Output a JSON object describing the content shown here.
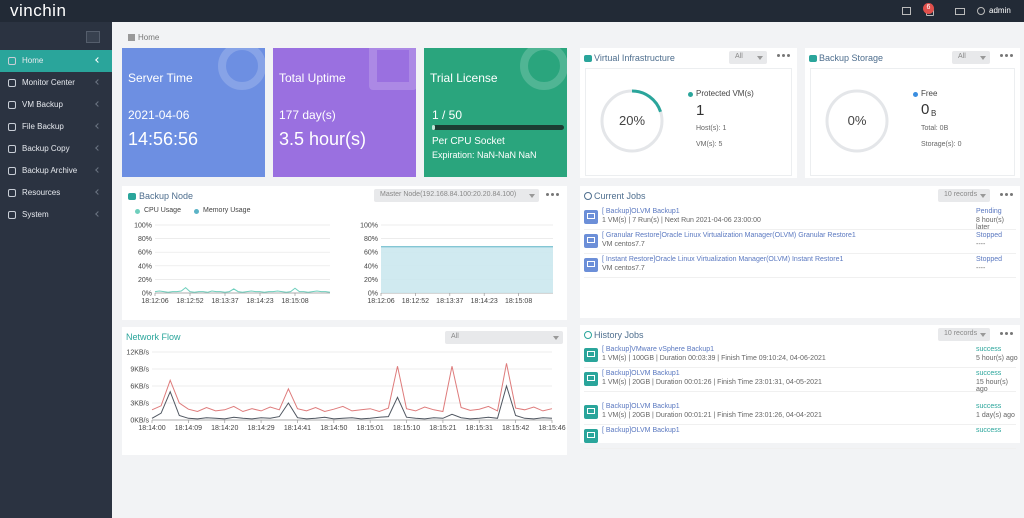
{
  "header": {
    "logo": "vinchin",
    "notifications": "6",
    "user": "admin"
  },
  "sidebar": {
    "items": [
      "Home",
      "Monitor Center",
      "VM Backup",
      "File Backup",
      "Backup Copy",
      "Backup Archive",
      "Resources",
      "System"
    ]
  },
  "breadcrumb": "Home",
  "cards": [
    {
      "title": "Server Time",
      "line1": "2021-04-06",
      "line2": "14:56:56"
    },
    {
      "title": "Total Uptime",
      "line1": "177 day(s)",
      "line2": "3.5 hour(s)"
    },
    {
      "title": "Trial License",
      "line1": "1 / 50",
      "line2": "Per CPU Socket",
      "line3": "Expiration: NaN-NaN NaN"
    }
  ],
  "virtual_infrastructure": {
    "title": "Virtual Infrastructure",
    "filter": "All",
    "gauge": {
      "value": 20,
      "label": "20%"
    },
    "legend": "Protected VM(s)",
    "count": "1",
    "hosts": "Host(s): 1",
    "vms": "VM(s): 5"
  },
  "backup_storage": {
    "title": "Backup Storage",
    "filter": "All",
    "gauge": {
      "value": 0,
      "label": "0%"
    },
    "legend": "Free",
    "amount": "0",
    "unit": "B",
    "total": "Total: 0B",
    "storages": "Storage(s): 0"
  },
  "backup_node": {
    "title": "Backup Node",
    "node": "Master Node(192.168.84.100:20.20.84.100)",
    "x": [
      "18:12:06",
      null,
      null,
      null,
      null,
      null,
      null,
      null,
      "18:12:52",
      null,
      null,
      null,
      null,
      null,
      null,
      null,
      "18:13:37",
      null,
      null,
      null,
      null,
      null,
      null,
      null,
      "18:14:23",
      null,
      null,
      null,
      null,
      null,
      null,
      null,
      "18:15:08",
      null,
      null,
      null,
      null,
      null,
      null,
      null,
      null
    ],
    "ylim": [
      0,
      100
    ],
    "yticks": [
      {
        "value": 0,
        "label": "0%"
      },
      {
        "value": 20,
        "label": "20%"
      },
      {
        "value": 40,
        "label": "40%"
      },
      {
        "value": 60,
        "label": "60%"
      },
      {
        "value": 80,
        "label": "80%"
      },
      {
        "value": 100,
        "label": "100%"
      }
    ],
    "cpu": {
      "name": "CPU Usage",
      "color": "#6fcfbd",
      "values": [
        2,
        3,
        2,
        1,
        2,
        2,
        3,
        8,
        2,
        1,
        2,
        2,
        1,
        3,
        2,
        2,
        1,
        2,
        6,
        2,
        1,
        2,
        3,
        2,
        2,
        1,
        2,
        2,
        3,
        2,
        1,
        2,
        7,
        2,
        2,
        1,
        2,
        3,
        2,
        2,
        1
      ]
    },
    "memory": {
      "name": "Memory Usage",
      "color": "#5bb3c6",
      "values": [
        68,
        68,
        68,
        68,
        68,
        68,
        68,
        68,
        68,
        68,
        68,
        68,
        68,
        68,
        68,
        68,
        68,
        68,
        68,
        68,
        68,
        68,
        68,
        68,
        68,
        68,
        68,
        68,
        68,
        68,
        68,
        68,
        68,
        68,
        68,
        68,
        68,
        68,
        68,
        68,
        68
      ]
    }
  },
  "network_flow": {
    "title": "Network Flow",
    "filter": "All",
    "x": [
      "18:14:00",
      null,
      null,
      null,
      "18:14:09",
      null,
      null,
      null,
      "18:14:20",
      null,
      null,
      null,
      "18:14:29",
      null,
      null,
      null,
      "18:14:41",
      null,
      null,
      null,
      "18:14:50",
      null,
      null,
      null,
      "18:15:01",
      null,
      null,
      null,
      "18:15:10",
      null,
      null,
      null,
      "18:15:21",
      null,
      null,
      null,
      "18:15:31",
      null,
      null,
      null,
      "18:15:42",
      null,
      null,
      null,
      "18:15:46"
    ],
    "ylim": [
      0,
      12
    ],
    "yticks": [
      {
        "value": 0,
        "label": "0KB/s"
      },
      {
        "value": 3,
        "label": "3KB/s"
      },
      {
        "value": 6,
        "label": "6KB/s"
      },
      {
        "value": 9,
        "label": "9KB/s"
      },
      {
        "value": 12,
        "label": "12KB/s"
      }
    ],
    "series": [
      {
        "color": "#de7b7b",
        "values": [
          1.8,
          2.5,
          7,
          3,
          1.9,
          1.5,
          2.2,
          1.6,
          1.8,
          2.4,
          1.5,
          2,
          1.6,
          2.3,
          1.8,
          5.5,
          2,
          1.6,
          2.2,
          1.5,
          1.9,
          2.4,
          1.6,
          1.8,
          2,
          1.5,
          2.1,
          9.5,
          2,
          1.6,
          2.3,
          1.8,
          1.5,
          9.5,
          2.2,
          1.7,
          1.9,
          2.4,
          1.6,
          10,
          2.1,
          1.8,
          2.3,
          1.6,
          2
        ]
      },
      {
        "color": "#4f5660",
        "values": [
          0.3,
          1.2,
          5,
          0.8,
          0.3,
          0.2,
          0.4,
          0.3,
          0.2,
          0.5,
          0.3,
          0.2,
          0.4,
          0.3,
          0.6,
          3,
          0.4,
          0.2,
          0.3,
          0.5,
          0.2,
          0.3,
          0.4,
          0.2,
          0.3,
          0.5,
          0.6,
          4,
          0.5,
          0.3,
          0.2,
          0.4,
          0.3,
          1,
          0.4,
          0.2,
          0.3,
          0.5,
          0.3,
          6,
          0.8,
          0.3,
          0.2,
          0.4,
          0.3
        ]
      }
    ]
  },
  "current_jobs": {
    "title": "Current Jobs",
    "records": "10 records",
    "jobs": [
      {
        "name": "[ Backup]OLVM Backup1",
        "detail": "1 VM(s) | 7 Run(s) | Next Run 2021-04-06 23:00:00",
        "status": "Pending",
        "time": "8 hour(s) later"
      },
      {
        "name": "[ Granular Restore]Oracle Linux Virtualization Manager(OLVM) Granular Restore1",
        "detail": "VM centos7.7",
        "status": "Stopped",
        "time": "----"
      },
      {
        "name": "[ Instant Restore]Oracle Linux Virtualization Manager(OLVM) Instant Restore1",
        "detail": "VM centos7.7",
        "status": "Stopped",
        "time": "----"
      }
    ]
  },
  "history_jobs": {
    "title": "History Jobs",
    "records": "10 records",
    "jobs": [
      {
        "name": "[ Backup]VMware vSphere Backup1",
        "detail": "1 VM(s) | 100GB | Duration 00:03:39 | Finish Time 09:10:24, 04-06-2021",
        "status": "success",
        "time": "5 hour(s) ago"
      },
      {
        "name": "[ Backup]OLVM Backup1",
        "detail": "1 VM(s) | 20GB | Duration 00:01:26 | Finish Time 23:01:31, 04-05-2021",
        "status": "success",
        "time": "15 hour(s) ago"
      },
      {
        "name": "[ Backup]OLVM Backup1",
        "detail": "1 VM(s) | 20GB | Duration 00:01:21 | Finish Time 23:01:26, 04-04-2021",
        "status": "success",
        "time": "1 day(s) ago"
      },
      {
        "name": "[ Backup]OLVM Backup1",
        "status": "success"
      }
    ]
  }
}
